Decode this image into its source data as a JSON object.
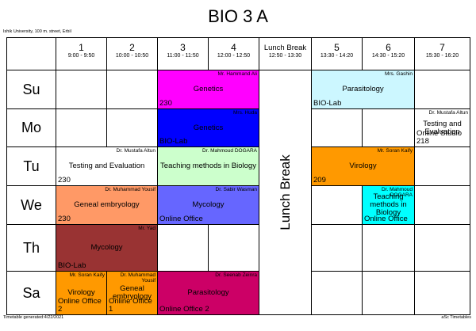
{
  "header": {
    "title": "BIO 3 A",
    "school": "Ishik University, 100 m. street, Erbil"
  },
  "columns": [
    {
      "label": "1",
      "time": "9:00 - 9:50"
    },
    {
      "label": "2",
      "time": "10:00 - 10:50"
    },
    {
      "label": "3",
      "time": "11:00 - 11:50"
    },
    {
      "label": "4",
      "time": "12:00 - 12:50"
    },
    {
      "label": "Lunch Break",
      "time": "12:50 - 13:30"
    },
    {
      "label": "5",
      "time": "13:30 - 14:20"
    },
    {
      "label": "6",
      "time": "14:30 - 15:20"
    },
    {
      "label": "7",
      "time": "15:30 - 16:20"
    }
  ],
  "lunch_label": "Lunch Break",
  "days": [
    {
      "name": "Su",
      "lessons": [
        {
          "periods": [
            "3",
            "4"
          ],
          "teacher": "Mr. Hammand Ali",
          "subject": "Genetics",
          "room": "230",
          "color": "#ff00ff"
        },
        {
          "periods": [
            "5",
            "6"
          ],
          "teacher": "Mrs. Gashin",
          "subject": "Parasitology",
          "room": "BIO-Lab",
          "color": "#ccf7ff"
        }
      ]
    },
    {
      "name": "Mo",
      "lessons": [
        {
          "periods": [
            "3",
            "4"
          ],
          "teacher": "Mrs. Huda",
          "subject": "Genetics",
          "room": "BIO-Lab",
          "color": "#0000ff"
        },
        {
          "periods": [
            "7"
          ],
          "teacher": "Dr. Mustafa Altun",
          "subject": "Testing and Evaluation",
          "room": "Online Studio 218",
          "color": "#ffffff"
        }
      ]
    },
    {
      "name": "Tu",
      "lessons": [
        {
          "periods": [
            "1",
            "2"
          ],
          "teacher": "Dr. Mustafa Altun",
          "subject": "Testing and Evaluation",
          "room": "230",
          "color": "#ffffff"
        },
        {
          "periods": [
            "3",
            "4"
          ],
          "teacher": "Dr. Mahmoud DOGARA",
          "subject": "Teaching methods in Biology",
          "room": "",
          "color": "#ccffcc"
        },
        {
          "periods": [
            "5",
            "6"
          ],
          "teacher": "Mr. Soran Kaify",
          "subject": "Virology",
          "room": "209",
          "color": "#ff9900"
        }
      ]
    },
    {
      "name": "We",
      "lessons": [
        {
          "periods": [
            "1",
            "2"
          ],
          "teacher": "Dr. Muhammad Yousif",
          "subject": "Geneal embryology",
          "room": "230",
          "color": "#ff9966"
        },
        {
          "periods": [
            "3",
            "4"
          ],
          "teacher": "Dr. Sabir Wasman",
          "subject": "Mycology",
          "room": "Online Office",
          "color": "#6666ff"
        },
        {
          "periods": [
            "6"
          ],
          "teacher": "Dr. Mahmoud DOGARA",
          "subject": "Teaching methods in Biology",
          "room": "Online Office",
          "color": "#00ffff"
        }
      ]
    },
    {
      "name": "Th",
      "lessons": [
        {
          "periods": [
            "1",
            "2"
          ],
          "teacher": "Mr. Yad",
          "subject": "Mycology",
          "room": "BIO-Lab",
          "color": "#993333"
        }
      ]
    },
    {
      "name": "Sa",
      "lessons": [
        {
          "periods": [
            "1"
          ],
          "teacher": "Mr. Soran Kaify",
          "subject": "Virology",
          "room": "Online Office 2",
          "color": "#ff9900"
        },
        {
          "periods": [
            "2"
          ],
          "teacher": "Dr. Muhammad Yousif",
          "subject": "Geneal embryology",
          "room": "Online Office 1",
          "color": "#ff9900"
        },
        {
          "periods": [
            "3",
            "4"
          ],
          "teacher": "Dr. Seenab Zeinra",
          "subject": "Parasitology",
          "room": "Online Office 2",
          "color": "#cc0066"
        }
      ]
    }
  ],
  "footer": {
    "generated": "Timetable generated:4/22/2021",
    "brand": "aSc Timetables"
  }
}
